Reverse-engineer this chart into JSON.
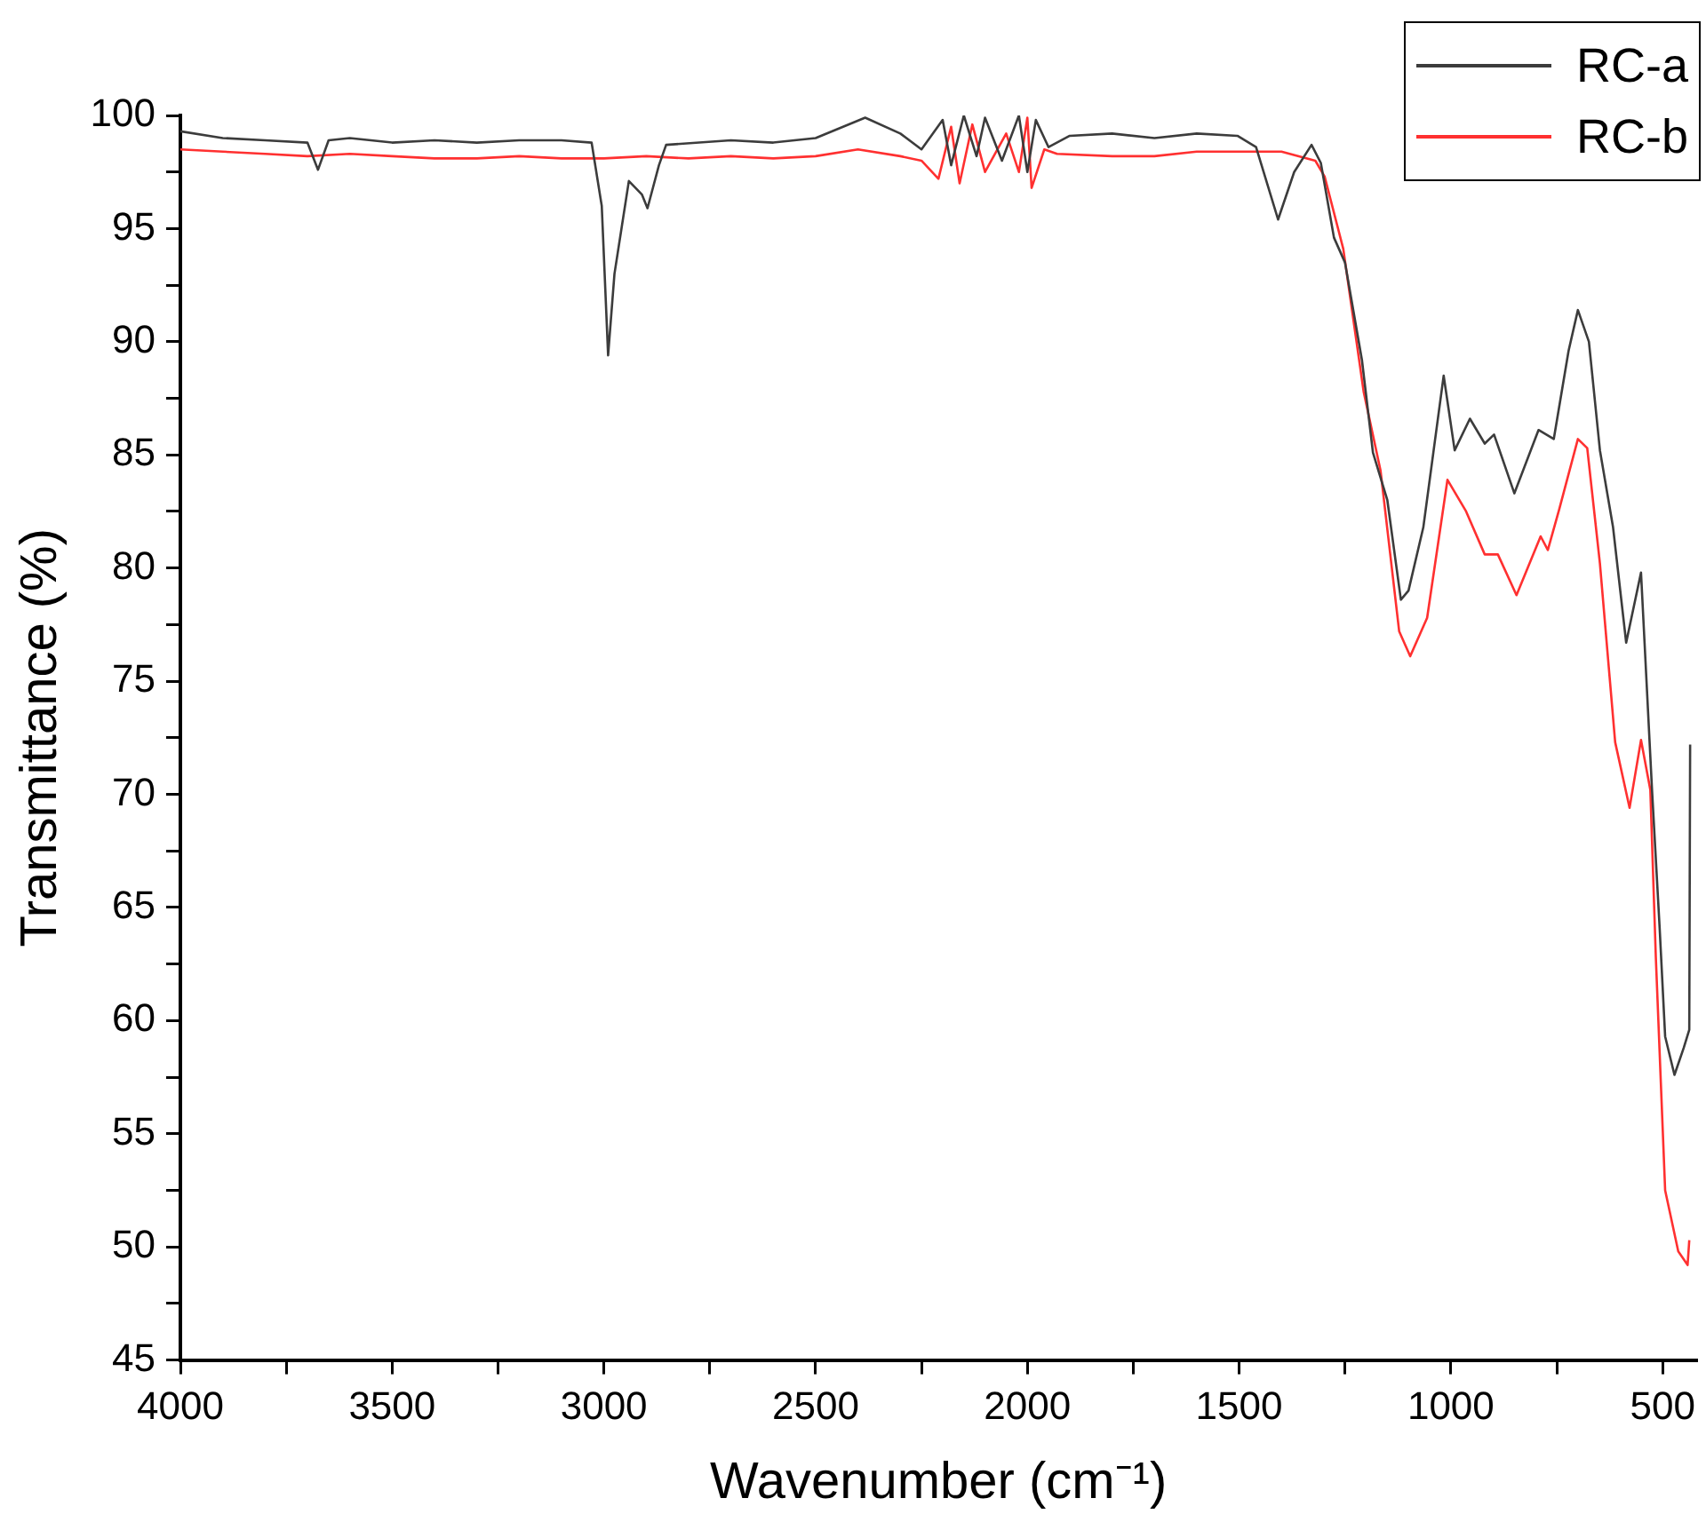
{
  "chart_data": {
    "type": "line",
    "xlabel": "Wavenumber (cm⁻¹)",
    "ylabel": "Transmittance (%)",
    "xlim": [
      4000,
      420
    ],
    "xticks": [
      4000,
      {
        "value": 3750,
        "label": null
      },
      3500,
      {
        "value": 3250,
        "label": null
      },
      3000,
      {
        "value": 2750,
        "label": null
      },
      2500,
      {
        "value": 2250,
        "label": null
      },
      2000,
      {
        "value": 1750,
        "label": null
      },
      1500,
      {
        "value": 1250,
        "label": null
      },
      1000,
      {
        "value": 750,
        "label": null
      },
      500
    ],
    "ylim": [
      45,
      100
    ],
    "yticks": [
      45,
      {
        "value": 47.5,
        "label": null
      },
      50,
      {
        "value": 52.5,
        "label": null
      },
      55,
      {
        "value": 57.5,
        "label": null
      },
      60,
      {
        "value": 62.5,
        "label": null
      },
      65,
      {
        "value": 67.5,
        "label": null
      },
      70,
      {
        "value": 72.5,
        "label": null
      },
      75,
      {
        "value": 77.5,
        "label": null
      },
      80,
      {
        "value": 82.5,
        "label": null
      },
      85,
      {
        "value": 87.5,
        "label": null
      },
      90,
      {
        "value": 92.5,
        "label": null
      },
      95,
      {
        "value": 97.5,
        "label": null
      },
      100
    ],
    "grid": false,
    "legend": "top right",
    "line_style": "solid",
    "series": [
      {
        "name": "RC-a",
        "color": "#3c3c3c",
        "x": [
          4000,
          3900,
          3800,
          3700,
          3675,
          3650,
          3600,
          3500,
          3400,
          3300,
          3200,
          3100,
          3029,
          3005,
          2990,
          2975,
          2941,
          2910,
          2897,
          2870,
          2853,
          2700,
          2600,
          2500,
          2383,
          2300,
          2250,
          2200,
          2180,
          2150,
          2120,
          2100,
          2060,
          2020,
          2000,
          1980,
          1950,
          1900,
          1800,
          1700,
          1600,
          1504,
          1460,
          1408,
          1370,
          1329,
          1307,
          1276,
          1250,
          1210,
          1184,
          1150,
          1118,
          1100,
          1065,
          1017,
          991,
          955,
          920,
          898,
          850,
          793,
          757,
          722,
          700,
          674,
          648,
          617,
          586,
          551,
          525,
          507,
          494,
          472,
          450,
          437,
          435
        ],
        "values": [
          99.3,
          99,
          98.9,
          98.8,
          97.6,
          98.9,
          99,
          98.8,
          98.9,
          98.8,
          98.9,
          98.9,
          98.8,
          96,
          89.4,
          93,
          97.1,
          96.5,
          95.9,
          97.8,
          98.7,
          98.9,
          98.8,
          99,
          99.9,
          99.2,
          98.5,
          99.8,
          97.8,
          100,
          98.2,
          99.9,
          98,
          100,
          97.5,
          99.8,
          98.6,
          99.1,
          99.2,
          99,
          99.2,
          99.1,
          98.6,
          95.4,
          97.5,
          98.7,
          97.9,
          94.6,
          93.5,
          89.2,
          85.1,
          83,
          78.6,
          79,
          81.8,
          88.5,
          85.2,
          86.6,
          85.5,
          85.9,
          83.3,
          86.1,
          85.7,
          89.6,
          91.4,
          90,
          85.2,
          81.8,
          76.7,
          79.8,
          70.2,
          64.1,
          59.3,
          57.6,
          58.8,
          59.6,
          72.2
        ]
      },
      {
        "name": "RC-b",
        "color": "#ff3030",
        "x": [
          4000,
          3900,
          3800,
          3700,
          3600,
          3500,
          3400,
          3300,
          3200,
          3100,
          3000,
          2900,
          2800,
          2700,
          2600,
          2500,
          2400,
          2300,
          2250,
          2210,
          2180,
          2160,
          2130,
          2100,
          2050,
          2020,
          2000,
          1990,
          1960,
          1930,
          1800,
          1700,
          1600,
          1500,
          1400,
          1320,
          1298,
          1254,
          1206,
          1166,
          1122,
          1096,
          1056,
          1008,
          964,
          920,
          889,
          845,
          788,
          771,
          744,
          700,
          678,
          648,
          612,
          578,
          551,
          529,
          516,
          494,
          463,
          441,
          437
        ],
        "values": [
          98.5,
          98.4,
          98.3,
          98.2,
          98.3,
          98.2,
          98.1,
          98.1,
          98.2,
          98.1,
          98.1,
          98.2,
          98.1,
          98.2,
          98.1,
          98.2,
          98.5,
          98.2,
          98,
          97.2,
          99.5,
          97,
          99.6,
          97.5,
          99.2,
          97.5,
          99.9,
          96.8,
          98.5,
          98.3,
          98.2,
          98.2,
          98.4,
          98.4,
          98.4,
          98,
          97.3,
          94.1,
          87.8,
          84.3,
          77.2,
          76.1,
          77.8,
          83.9,
          82.5,
          80.6,
          80.6,
          78.8,
          81.4,
          80.8,
          82.6,
          85.7,
          85.3,
          80.2,
          72.3,
          69.4,
          72.4,
          70.2,
          62.8,
          52.5,
          49.8,
          49.2,
          50.3
        ]
      }
    ]
  }
}
